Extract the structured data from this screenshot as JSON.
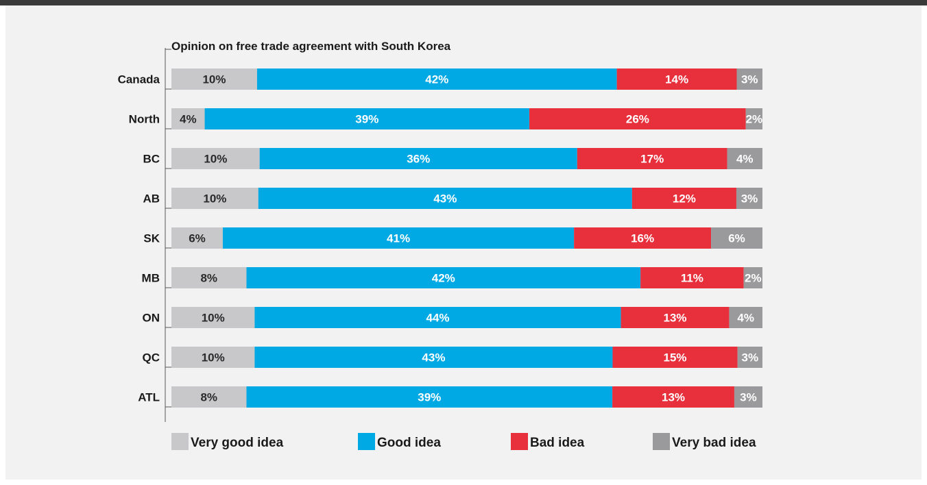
{
  "chart_data": {
    "type": "bar",
    "orientation": "horizontal",
    "stacked": true,
    "title": "Opinion on free trade agreement with South Korea",
    "categories": [
      "Canada",
      "North",
      "BC",
      "AB",
      "SK",
      "MB",
      "ON",
      "QC",
      "ATL"
    ],
    "series": [
      {
        "name": "Very good idea",
        "color": "#c8c8ca",
        "label_color": "#2a2a2a",
        "values": [
          10,
          4,
          10,
          10,
          6,
          8,
          10,
          10,
          8
        ],
        "labels": [
          "10%",
          "4%",
          "10%",
          "10%",
          "6%",
          "8%",
          "10%",
          "10%",
          "8%"
        ]
      },
      {
        "name": "Good idea",
        "color": "#00a9e4",
        "label_color": "#ffffff",
        "values": [
          42,
          39,
          36,
          43,
          41,
          42,
          44,
          43,
          39
        ],
        "labels": [
          "42%",
          "39%",
          "36%",
          "43%",
          "41%",
          "42%",
          "44%",
          "43%",
          "39%"
        ]
      },
      {
        "name": "Bad idea",
        "color": "#e8303c",
        "label_color": "#ffffff",
        "values": [
          14,
          26,
          17,
          12,
          16,
          11,
          13,
          15,
          13
        ],
        "labels": [
          "14%",
          "26%",
          "17%",
          "12%",
          "16%",
          "11%",
          "13%",
          "15%",
          "13%"
        ]
      },
      {
        "name": "Very bad idea",
        "color": "#9a9a9c",
        "label_color": "#ffffff",
        "values": [
          3,
          2,
          4,
          3,
          6,
          2,
          4,
          3,
          3
        ],
        "labels": [
          "3%",
          "2%",
          "4%",
          "3%",
          "6%",
          "2%",
          "4%",
          "3%",
          "3%"
        ]
      }
    ],
    "grid": false,
    "legend_position": "bottom"
  }
}
